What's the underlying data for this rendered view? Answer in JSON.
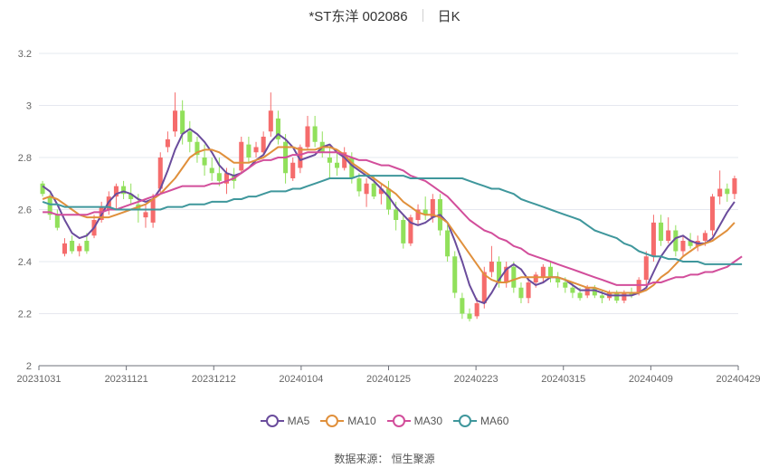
{
  "header": {
    "stock": "*ST东洋 002086",
    "period": "日K"
  },
  "source": {
    "label": "数据来源：",
    "name": "恒生聚源"
  },
  "chart_data": {
    "type": "candlestick",
    "x_ticks": [
      "20231031",
      "20231121",
      "20231212",
      "20240104",
      "20240125",
      "20240223",
      "20240315",
      "20240409",
      "20240429"
    ],
    "y_ticks": [
      "2",
      "2.2",
      "2.4",
      "2.6",
      "2.8",
      "3",
      "3.2"
    ],
    "ylim": [
      2,
      3.2
    ],
    "grid": true,
    "legend_position": "bottom",
    "colors": {
      "up": "#f56c6c",
      "down": "#91e05b",
      "grid": "#e6e8ef",
      "axis": "#666666"
    },
    "ohlc_columns": [
      "open",
      "high",
      "low",
      "close"
    ],
    "candles": [
      [
        2.7,
        2.71,
        2.65,
        2.66
      ],
      [
        2.65,
        2.66,
        2.56,
        2.58
      ],
      [
        2.58,
        2.6,
        2.52,
        2.53
      ],
      [
        2.43,
        2.49,
        2.42,
        2.47
      ],
      [
        2.48,
        2.5,
        2.43,
        2.44
      ],
      [
        2.44,
        2.47,
        2.42,
        2.46
      ],
      [
        2.48,
        2.51,
        2.43,
        2.44
      ],
      [
        2.5,
        2.58,
        2.49,
        2.56
      ],
      [
        2.56,
        2.63,
        2.55,
        2.61
      ],
      [
        2.6,
        2.67,
        2.58,
        2.65
      ],
      [
        2.65,
        2.7,
        2.6,
        2.69
      ],
      [
        2.69,
        2.71,
        2.64,
        2.66
      ],
      [
        2.66,
        2.7,
        2.62,
        2.64
      ],
      [
        2.62,
        2.66,
        2.55,
        2.6
      ],
      [
        2.57,
        2.62,
        2.53,
        2.59
      ],
      [
        2.55,
        2.66,
        2.53,
        2.64
      ],
      [
        2.68,
        2.82,
        2.66,
        2.8
      ],
      [
        2.84,
        2.9,
        2.82,
        2.87
      ],
      [
        2.9,
        3.05,
        2.88,
        2.98
      ],
      [
        2.98,
        3.02,
        2.85,
        2.89
      ],
      [
        2.9,
        2.94,
        2.82,
        2.86
      ],
      [
        2.86,
        2.88,
        2.78,
        2.81
      ],
      [
        2.8,
        2.85,
        2.73,
        2.77
      ],
      [
        2.76,
        2.8,
        2.71,
        2.74
      ],
      [
        2.74,
        2.8,
        2.69,
        2.71
      ],
      [
        2.7,
        2.76,
        2.66,
        2.74
      ],
      [
        2.73,
        2.76,
        2.68,
        2.71
      ],
      [
        2.75,
        2.88,
        2.74,
        2.86
      ],
      [
        2.85,
        2.88,
        2.78,
        2.8
      ],
      [
        2.82,
        2.86,
        2.8,
        2.84
      ],
      [
        2.82,
        2.9,
        2.81,
        2.88
      ],
      [
        2.9,
        3.05,
        2.88,
        2.98
      ],
      [
        2.95,
        2.98,
        2.85,
        2.87
      ],
      [
        2.86,
        2.89,
        2.7,
        2.74
      ],
      [
        2.72,
        2.8,
        2.71,
        2.78
      ],
      [
        2.76,
        2.85,
        2.74,
        2.84
      ],
      [
        2.84,
        2.96,
        2.83,
        2.92
      ],
      [
        2.92,
        2.96,
        2.84,
        2.86
      ],
      [
        2.86,
        2.9,
        2.8,
        2.82
      ],
      [
        2.8,
        2.84,
        2.72,
        2.78
      ],
      [
        2.78,
        2.82,
        2.73,
        2.76
      ],
      [
        2.76,
        2.84,
        2.75,
        2.82
      ],
      [
        2.8,
        2.82,
        2.7,
        2.72
      ],
      [
        2.72,
        2.74,
        2.65,
        2.67
      ],
      [
        2.66,
        2.72,
        2.61,
        2.7
      ],
      [
        2.7,
        2.73,
        2.64,
        2.65
      ],
      [
        2.66,
        2.7,
        2.62,
        2.68
      ],
      [
        2.68,
        2.71,
        2.58,
        2.6
      ],
      [
        2.6,
        2.63,
        2.52,
        2.56
      ],
      [
        2.56,
        2.58,
        2.45,
        2.47
      ],
      [
        2.47,
        2.58,
        2.46,
        2.57
      ],
      [
        2.56,
        2.62,
        2.54,
        2.6
      ],
      [
        2.6,
        2.65,
        2.56,
        2.58
      ],
      [
        2.57,
        2.66,
        2.55,
        2.64
      ],
      [
        2.64,
        2.66,
        2.5,
        2.52
      ],
      [
        2.52,
        2.54,
        2.4,
        2.42
      ],
      [
        2.42,
        2.44,
        2.26,
        2.28
      ],
      [
        2.26,
        2.28,
        2.18,
        2.2
      ],
      [
        2.2,
        2.22,
        2.17,
        2.18
      ],
      [
        2.19,
        2.26,
        2.18,
        2.24
      ],
      [
        2.24,
        2.38,
        2.22,
        2.36
      ],
      [
        2.36,
        2.46,
        2.34,
        2.4
      ],
      [
        2.4,
        2.42,
        2.3,
        2.32
      ],
      [
        2.32,
        2.4,
        2.3,
        2.38
      ],
      [
        2.38,
        2.4,
        2.28,
        2.3
      ],
      [
        2.3,
        2.32,
        2.24,
        2.26
      ],
      [
        2.26,
        2.34,
        2.24,
        2.32
      ],
      [
        2.32,
        2.36,
        2.3,
        2.35
      ],
      [
        2.34,
        2.39,
        2.32,
        2.38
      ],
      [
        2.38,
        2.4,
        2.32,
        2.34
      ],
      [
        2.34,
        2.36,
        2.3,
        2.32
      ],
      [
        2.32,
        2.34,
        2.28,
        2.3
      ],
      [
        2.3,
        2.32,
        2.26,
        2.28
      ],
      [
        2.28,
        2.3,
        2.25,
        2.26
      ],
      [
        2.27,
        2.31,
        2.26,
        2.3
      ],
      [
        2.3,
        2.31,
        2.26,
        2.27
      ],
      [
        2.27,
        2.29,
        2.24,
        2.26
      ],
      [
        2.26,
        2.29,
        2.25,
        2.28
      ],
      [
        2.28,
        2.29,
        2.24,
        2.25
      ],
      [
        2.25,
        2.29,
        2.24,
        2.28
      ],
      [
        2.28,
        2.3,
        2.26,
        2.27
      ],
      [
        2.28,
        2.34,
        2.27,
        2.33
      ],
      [
        2.33,
        2.44,
        2.31,
        2.42
      ],
      [
        2.42,
        2.58,
        2.4,
        2.55
      ],
      [
        2.55,
        2.58,
        2.46,
        2.48
      ],
      [
        2.48,
        2.57,
        2.47,
        2.52
      ],
      [
        2.52,
        2.54,
        2.42,
        2.44
      ],
      [
        2.44,
        2.5,
        2.42,
        2.48
      ],
      [
        2.48,
        2.51,
        2.45,
        2.46
      ],
      [
        2.46,
        2.5,
        2.44,
        2.48
      ],
      [
        2.48,
        2.52,
        2.46,
        2.51
      ],
      [
        2.52,
        2.66,
        2.5,
        2.65
      ],
      [
        2.65,
        2.75,
        2.62,
        2.68
      ],
      [
        2.68,
        2.7,
        2.63,
        2.66
      ],
      [
        2.66,
        2.73,
        2.64,
        2.72
      ]
    ],
    "series": [
      {
        "name": "MA5",
        "color": "#6a4c9c",
        "values": [
          2.69,
          2.67,
          2.62,
          2.56,
          2.51,
          2.49,
          2.5,
          2.53,
          2.58,
          2.63,
          2.66,
          2.67,
          2.66,
          2.64,
          2.63,
          2.64,
          2.68,
          2.75,
          2.83,
          2.89,
          2.91,
          2.89,
          2.86,
          2.82,
          2.77,
          2.74,
          2.73,
          2.74,
          2.76,
          2.79,
          2.81,
          2.86,
          2.89,
          2.87,
          2.84,
          2.79,
          2.8,
          2.81,
          2.84,
          2.85,
          2.82,
          2.8,
          2.77,
          2.75,
          2.73,
          2.71,
          2.68,
          2.65,
          2.61,
          2.58,
          2.55,
          2.54,
          2.55,
          2.57,
          2.58,
          2.55,
          2.48,
          2.4,
          2.31,
          2.25,
          2.24,
          2.28,
          2.33,
          2.37,
          2.39,
          2.37,
          2.33,
          2.31,
          2.32,
          2.34,
          2.34,
          2.33,
          2.31,
          2.29,
          2.29,
          2.29,
          2.28,
          2.27,
          2.27,
          2.27,
          2.27,
          2.28,
          2.3,
          2.36,
          2.42,
          2.46,
          2.49,
          2.5,
          2.48,
          2.47,
          2.47,
          2.49,
          2.54,
          2.59,
          2.63
        ]
      },
      {
        "name": "MA10",
        "color": "#e0903c",
        "values": [
          2.64,
          2.65,
          2.64,
          2.62,
          2.6,
          2.58,
          2.57,
          2.57,
          2.57,
          2.57,
          2.58,
          2.59,
          2.6,
          2.61,
          2.62,
          2.64,
          2.66,
          2.69,
          2.72,
          2.76,
          2.8,
          2.82,
          2.83,
          2.83,
          2.82,
          2.8,
          2.78,
          2.78,
          2.78,
          2.79,
          2.8,
          2.82,
          2.84,
          2.84,
          2.84,
          2.83,
          2.83,
          2.83,
          2.84,
          2.84,
          2.83,
          2.81,
          2.78,
          2.76,
          2.74,
          2.72,
          2.7,
          2.68,
          2.66,
          2.63,
          2.61,
          2.59,
          2.58,
          2.58,
          2.57,
          2.55,
          2.51,
          2.47,
          2.43,
          2.39,
          2.35,
          2.33,
          2.32,
          2.32,
          2.33,
          2.34,
          2.34,
          2.34,
          2.34,
          2.34,
          2.34,
          2.33,
          2.32,
          2.31,
          2.3,
          2.3,
          2.29,
          2.28,
          2.28,
          2.28,
          2.28,
          2.28,
          2.29,
          2.31,
          2.34,
          2.36,
          2.39,
          2.42,
          2.44,
          2.46,
          2.47,
          2.48,
          2.5,
          2.52,
          2.55
        ]
      },
      {
        "name": "MA30",
        "color": "#d24e9b",
        "values": [
          2.59,
          2.59,
          2.58,
          2.58,
          2.58,
          2.58,
          2.58,
          2.59,
          2.59,
          2.6,
          2.6,
          2.61,
          2.62,
          2.63,
          2.64,
          2.65,
          2.66,
          2.67,
          2.68,
          2.69,
          2.69,
          2.69,
          2.69,
          2.7,
          2.7,
          2.71,
          2.72,
          2.74,
          2.76,
          2.78,
          2.79,
          2.79,
          2.8,
          2.8,
          2.81,
          2.81,
          2.82,
          2.82,
          2.82,
          2.82,
          2.82,
          2.81,
          2.8,
          2.79,
          2.79,
          2.78,
          2.77,
          2.77,
          2.76,
          2.75,
          2.73,
          2.72,
          2.71,
          2.69,
          2.67,
          2.65,
          2.62,
          2.59,
          2.56,
          2.54,
          2.52,
          2.51,
          2.49,
          2.48,
          2.46,
          2.45,
          2.43,
          2.42,
          2.41,
          2.4,
          2.39,
          2.38,
          2.37,
          2.36,
          2.35,
          2.34,
          2.33,
          2.32,
          2.31,
          2.31,
          2.31,
          2.31,
          2.31,
          2.32,
          2.32,
          2.33,
          2.34,
          2.34,
          2.35,
          2.35,
          2.36,
          2.36,
          2.37,
          2.38,
          2.4,
          2.42
        ]
      },
      {
        "name": "MA60",
        "color": "#3f979c",
        "values": [
          2.63,
          2.62,
          2.62,
          2.61,
          2.61,
          2.61,
          2.61,
          2.61,
          2.61,
          2.61,
          2.6,
          2.6,
          2.6,
          2.6,
          2.6,
          2.6,
          2.6,
          2.61,
          2.61,
          2.61,
          2.62,
          2.62,
          2.62,
          2.63,
          2.63,
          2.63,
          2.64,
          2.64,
          2.65,
          2.65,
          2.66,
          2.67,
          2.67,
          2.67,
          2.68,
          2.68,
          2.69,
          2.7,
          2.71,
          2.72,
          2.72,
          2.72,
          2.72,
          2.73,
          2.73,
          2.73,
          2.73,
          2.73,
          2.73,
          2.73,
          2.72,
          2.72,
          2.72,
          2.72,
          2.72,
          2.72,
          2.72,
          2.72,
          2.71,
          2.7,
          2.69,
          2.68,
          2.68,
          2.67,
          2.66,
          2.64,
          2.63,
          2.62,
          2.61,
          2.6,
          2.59,
          2.58,
          2.57,
          2.56,
          2.54,
          2.52,
          2.51,
          2.5,
          2.49,
          2.47,
          2.46,
          2.44,
          2.43,
          2.42,
          2.42,
          2.41,
          2.41,
          2.4,
          2.4,
          2.4,
          2.39,
          2.39,
          2.39,
          2.39,
          2.39,
          2.39
        ]
      }
    ]
  }
}
